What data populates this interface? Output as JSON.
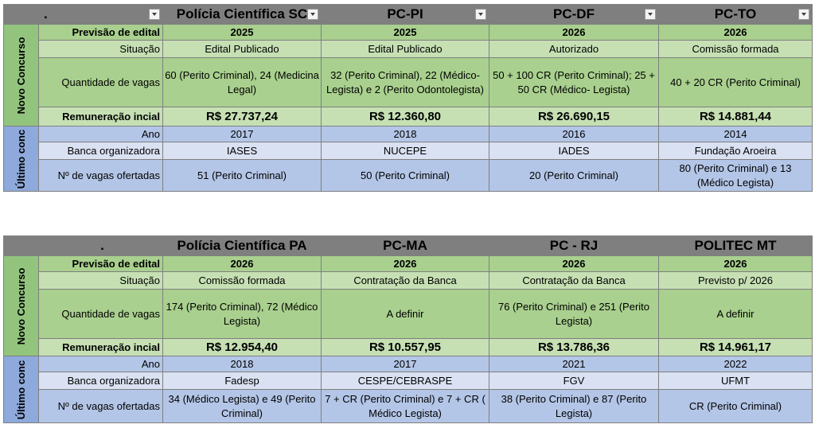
{
  "tables": [
    {
      "corner": ".",
      "columns": [
        "Polícia Científica SC",
        "PC-PI",
        "PC-DF",
        "PC-TO"
      ],
      "group_novo": "Novo Concurso",
      "group_ultimo": "Último conc",
      "rows": {
        "previsao": {
          "label": "Previsão de edital",
          "values": [
            "2025",
            "2025",
            "2026",
            "2026"
          ]
        },
        "situacao": {
          "label": "Situação",
          "values": [
            "Edital Publicado",
            "Edital Publicado",
            "Autorizado",
            "Comissão formada"
          ]
        },
        "vagas": {
          "label": "Quantidade de vagas",
          "values": [
            "60 (Perito Criminal), 24 (Medicina Legal)",
            "32 (Perito Criminal), 22 (Médico-Legista) e 2 (Perito Odontolegista)",
            "50 + 100 CR (Perito Criminal); 25 + 50 CR (Médico- Legista)",
            "40 + 20 CR   (Perito Criminal)"
          ]
        },
        "remuneracao": {
          "label": "Remuneração incial",
          "values": [
            "R$ 27.737,24",
            "R$ 12.360,80",
            "R$ 26.690,15",
            "R$ 14.881,44"
          ]
        },
        "ano": {
          "label": "Ano",
          "values": [
            "2017",
            "2018",
            "2016",
            "2014"
          ]
        },
        "banca": {
          "label": "Banca organizadora",
          "values": [
            "IASES",
            "NUCEPE",
            "IADES",
            "Fundação Aroeira"
          ]
        },
        "ofertadas": {
          "label": "Nº de vagas ofertadas",
          "values": [
            "51 (Perito Criminal)",
            "50 (Perito Criminal)",
            "20 (Perito Criminal)",
            "80 (Perito Criminal) e 13 (Médico Legista)"
          ]
        }
      }
    },
    {
      "corner": ".",
      "columns": [
        "Polícia Científica PA",
        "PC-MA",
        "PC - RJ",
        "POLITEC MT"
      ],
      "group_novo": "Novo Concurso",
      "group_ultimo": "Último conc",
      "rows": {
        "previsao": {
          "label": "Previsão de edital",
          "values": [
            "2026",
            "2026",
            "2026",
            "2026"
          ]
        },
        "situacao": {
          "label": "Situação",
          "values": [
            "Comissão formada",
            "Contratação da Banca",
            "Contratação da Banca",
            "Previsto p/ 2026"
          ]
        },
        "vagas": {
          "label": "Quantidade de vagas",
          "values": [
            "174 (Perito Criminal), 72 (Médico Legista)",
            "A definir",
            "76 (Perito Criminal) e 251 (Perito Legista)",
            "A definir"
          ]
        },
        "remuneracao": {
          "label": "Remuneração incial",
          "values": [
            "R$ 12.954,40",
            "R$ 10.557,95",
            "R$ 13.786,36",
            "R$ 14.961,17"
          ]
        },
        "ano": {
          "label": "Ano",
          "values": [
            "2018",
            "2017",
            "2021",
            "2022"
          ]
        },
        "banca": {
          "label": "Banca organizadora",
          "values": [
            "Fadesp",
            "CESPE/CEBRASPE",
            "FGV",
            "UFMT"
          ]
        },
        "ofertadas": {
          "label": "Nº de vagas ofertadas",
          "values": [
            "34 (Médico Legista) e 49 (Perito Criminal)",
            "7 + CR (Perito Criminal) e 7 + CR ( Médico Legista)",
            "38 (Perito Criminal) e 87 (Perito Legista)",
            "CR (Perito Criminal)"
          ]
        }
      }
    }
  ]
}
